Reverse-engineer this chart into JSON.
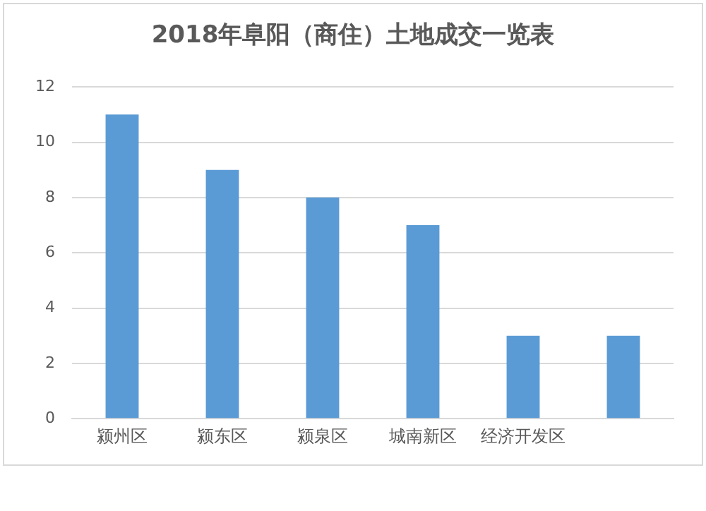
{
  "chart_data": {
    "type": "bar",
    "title": "2018年阜阳（商住）土地成交一览表",
    "categories": [
      "颍州区",
      "颍东区",
      "颍泉区",
      "城南新区",
      "经济开发区",
      null
    ],
    "values": [
      11,
      9,
      8,
      7,
      3,
      3
    ],
    "color": "#5b9bd5",
    "ylim": [
      0,
      12
    ],
    "yticks": [
      0,
      2,
      4,
      6,
      8,
      10,
      12
    ],
    "grid": "y"
  }
}
